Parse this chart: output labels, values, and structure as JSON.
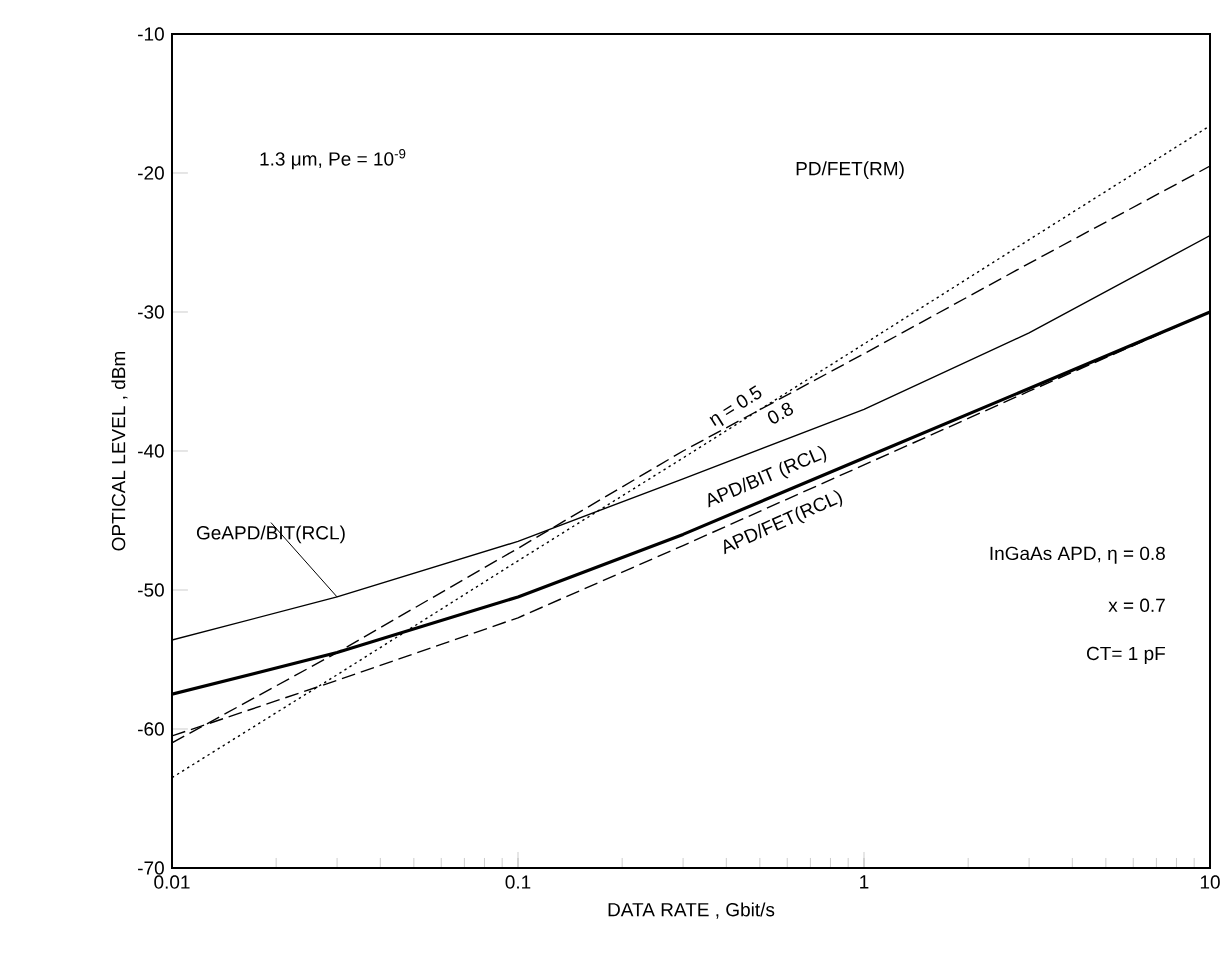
{
  "chart_data": {
    "type": "line",
    "xlabel": "DATA RATE , Gbit/s",
    "ylabel": "OPTICAL LEVEL , dBm",
    "log": "x",
    "xlim": [
      0.01,
      10
    ],
    "xticks": [
      0.01,
      0.1,
      1,
      10
    ],
    "ylim": [
      -70,
      -10
    ],
    "yticks": [
      -70,
      -60,
      -50,
      -40,
      -30,
      -20,
      -10
    ],
    "grid": false,
    "annotations": [
      "1.3 μm, Pe = 10$^{-9}$",
      "PD/FET(RM)",
      "InGaAs APD, η = 0.8",
      "x = 0.7",
      "CT= 1 pF"
    ],
    "x": [
      0.01,
      0.03,
      0.1,
      0.3,
      1,
      3,
      10
    ],
    "series": [
      {
        "name": "GeAPD/BIT(RCL)",
        "color": "#000000",
        "line_style": "solid",
        "values": [
          -53.6,
          -50.5,
          -46.5,
          -42,
          -37,
          -31.5,
          -24.5
        ]
      },
      {
        "name": "APD/BIT (RCL)",
        "color": "#000000",
        "line_style": "solid",
        "values": [
          -57.5,
          -54.5,
          -50.5,
          -46,
          -40.5,
          -35.5,
          -30
        ]
      },
      {
        "name": "APD/FET(RCL)",
        "color": "#000000",
        "line_style": "dashed",
        "values": [
          -60.5,
          -56.5,
          -52,
          -46.8,
          -41,
          -35.7,
          -30
        ]
      },
      {
        "name": "η = 0.5",
        "color": "#000000",
        "line_style": "dotted",
        "values": [
          -63.5,
          -56.1,
          -47.9,
          -40.5,
          -32.3,
          -24.8,
          -16.6
        ]
      },
      {
        "name": "0.8",
        "color": "#000000",
        "line_style": "dashed",
        "values": [
          -61,
          -54.5,
          -47,
          -40,
          -33,
          -26.5,
          -19.5
        ]
      }
    ]
  }
}
